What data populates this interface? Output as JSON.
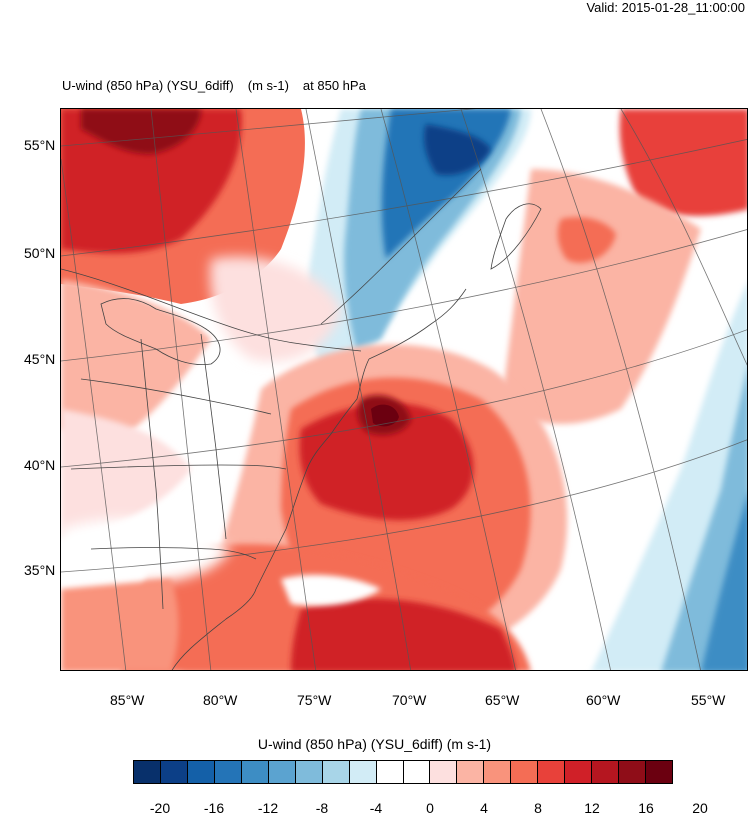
{
  "valid_text": "Valid: 2015-01-28_11:00:00",
  "title": {
    "variable": "U-wind (850 hPa) (YSU_6diff)",
    "units": "(m s-1)",
    "level": "at   850 hPa"
  },
  "lat_labels": [
    "55°N",
    "50°N",
    "45°N",
    "40°N",
    "35°N"
  ],
  "lon_labels": [
    "85°W",
    "80°W",
    "75°W",
    "70°W",
    "65°W",
    "60°W",
    "55°W"
  ],
  "colorbar": {
    "title": "U-wind (850 hPa) (YSU_6diff)  (m s-1)",
    "labels": [
      "-20",
      "-16",
      "-12",
      "-8",
      "-4",
      "0",
      "4",
      "8",
      "12",
      "16",
      "20"
    ],
    "colors": [
      "#08306b",
      "#0c3f87",
      "#1460a8",
      "#2474b7",
      "#3d8dc4",
      "#5ba3d0",
      "#7fbbdb",
      "#a8d5e8",
      "#d2ecf6",
      "#ffffff",
      "#ffffff",
      "#fde0df",
      "#fbb4a4",
      "#f9937c",
      "#f46d55",
      "#e8413a",
      "#d02028",
      "#b51620",
      "#8f0d18",
      "#6b0010"
    ]
  },
  "colors": {
    "strong_red": "#c9141d",
    "red": "#e8413a",
    "light_red": "#f9937c",
    "pink": "#fde0df",
    "blue": "#1460a8",
    "light_blue": "#7fbbdb",
    "pale_blue": "#d2ecf6"
  }
}
